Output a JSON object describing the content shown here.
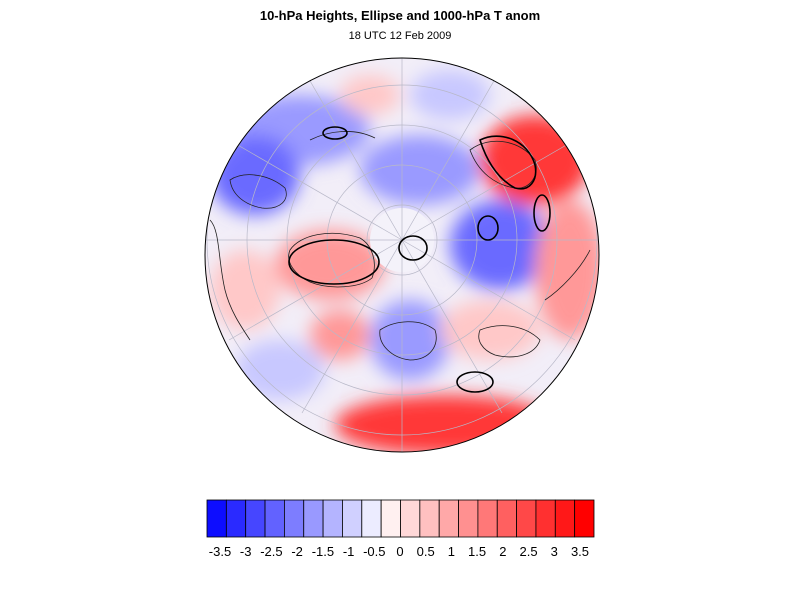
{
  "title": "10-hPa Heights, Ellipse and 1000-hPa T anom",
  "subtitle": "18 UTC 12 Feb 2009",
  "projection": "north-polar-stereographic",
  "colorbar": {
    "levels": [
      "-3.5",
      "-3",
      "-2.5",
      "-2",
      "-1.5",
      "-1",
      "-0.5",
      "0",
      "0.5",
      "1",
      "1.5",
      "2",
      "2.5",
      "3",
      "3.5"
    ],
    "colors": [
      "#0d0dff",
      "#2a2aff",
      "#4646ff",
      "#6262ff",
      "#7d7dff",
      "#9999ff",
      "#b4b4ff",
      "#d0d0ff",
      "#ececff",
      "#fff0f0",
      "#ffd8d8",
      "#ffc0c0",
      "#ffa8a8",
      "#ff9090",
      "#ff7878",
      "#ff6060",
      "#ff4848",
      "#ff3030",
      "#ff1818",
      "#ff0000"
    ]
  },
  "anomaly_colors": {
    "strong_cold": "#6a6aff",
    "cold": "#9a9aff",
    "weak_cold": "#c8c8ff",
    "neutral": "#f4f0f8",
    "weak_warm": "#ffc8c8",
    "warm": "#ff9898",
    "strong_warm": "#ff3838"
  }
}
